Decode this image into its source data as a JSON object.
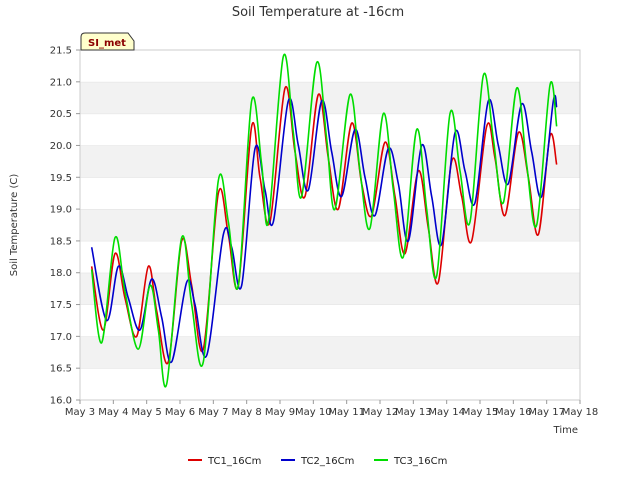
{
  "chart_data": {
    "type": "line",
    "title": "Soil Temperature at -16cm",
    "xlabel": "Time",
    "ylabel": "Soil Temperature (C)",
    "badge": "SI_met",
    "ylim": [
      16.0,
      21.5
    ],
    "xlim": [
      3,
      18
    ],
    "y_ticks": [
      "16.0",
      "16.5",
      "17.0",
      "17.5",
      "18.0",
      "18.5",
      "19.0",
      "19.5",
      "20.0",
      "20.5",
      "21.0",
      "21.5"
    ],
    "x_ticks": [
      "May 3",
      "May 4",
      "May 5",
      "May 6",
      "May 7",
      "May 8",
      "May 9",
      "May 10",
      "May 11",
      "May 12",
      "May 13",
      "May 14",
      "May 15",
      "May 16",
      "May 17",
      "May 18"
    ],
    "legend_position": "bottom-center",
    "grid": "alternating horizontal bands",
    "series": [
      {
        "name": "TC1_16Cm",
        "color": "#dd0000",
        "points": [
          [
            3.35,
            18.1
          ],
          [
            3.7,
            17.1
          ],
          [
            4.05,
            18.3
          ],
          [
            4.35,
            17.6
          ],
          [
            4.7,
            17.0
          ],
          [
            5.05,
            18.1
          ],
          [
            5.3,
            17.4
          ],
          [
            5.65,
            16.6
          ],
          [
            6.05,
            18.5
          ],
          [
            6.35,
            17.8
          ],
          [
            6.7,
            16.8
          ],
          [
            7.15,
            19.25
          ],
          [
            7.45,
            18.6
          ],
          [
            7.75,
            17.8
          ],
          [
            8.15,
            20.3
          ],
          [
            8.4,
            19.5
          ],
          [
            8.7,
            18.8
          ],
          [
            9.15,
            20.9
          ],
          [
            9.45,
            19.9
          ],
          [
            9.75,
            19.2
          ],
          [
            10.15,
            20.8
          ],
          [
            10.45,
            19.8
          ],
          [
            10.75,
            19.0
          ],
          [
            11.15,
            20.35
          ],
          [
            11.45,
            19.4
          ],
          [
            11.75,
            18.9
          ],
          [
            12.15,
            20.05
          ],
          [
            12.45,
            19.2
          ],
          [
            12.75,
            18.3
          ],
          [
            13.15,
            19.6
          ],
          [
            13.45,
            18.7
          ],
          [
            13.75,
            17.85
          ],
          [
            14.15,
            19.75
          ],
          [
            14.45,
            19.2
          ],
          [
            14.75,
            18.5
          ],
          [
            15.2,
            20.3
          ],
          [
            15.45,
            19.8
          ],
          [
            15.75,
            18.9
          ],
          [
            16.15,
            20.2
          ],
          [
            16.45,
            19.5
          ],
          [
            16.75,
            18.6
          ],
          [
            17.1,
            20.15
          ],
          [
            17.3,
            19.7
          ]
        ]
      },
      {
        "name": "TC2_16Cm",
        "color": "#0000cc",
        "points": [
          [
            3.35,
            18.4
          ],
          [
            3.8,
            17.25
          ],
          [
            4.15,
            18.1
          ],
          [
            4.45,
            17.6
          ],
          [
            4.8,
            17.1
          ],
          [
            5.15,
            17.9
          ],
          [
            5.45,
            17.3
          ],
          [
            5.75,
            16.6
          ],
          [
            6.2,
            17.85
          ],
          [
            6.45,
            17.5
          ],
          [
            6.8,
            16.7
          ],
          [
            7.3,
            18.6
          ],
          [
            7.55,
            18.4
          ],
          [
            7.85,
            17.8
          ],
          [
            8.25,
            19.95
          ],
          [
            8.55,
            19.3
          ],
          [
            8.8,
            18.8
          ],
          [
            9.25,
            20.7
          ],
          [
            9.55,
            20.0
          ],
          [
            9.85,
            19.3
          ],
          [
            10.25,
            20.7
          ],
          [
            10.55,
            19.9
          ],
          [
            10.85,
            19.2
          ],
          [
            11.25,
            20.25
          ],
          [
            11.55,
            19.5
          ],
          [
            11.85,
            18.9
          ],
          [
            12.25,
            19.95
          ],
          [
            12.55,
            19.4
          ],
          [
            12.85,
            18.5
          ],
          [
            13.25,
            20.0
          ],
          [
            13.55,
            19.2
          ],
          [
            13.85,
            18.45
          ],
          [
            14.25,
            20.2
          ],
          [
            14.55,
            19.6
          ],
          [
            14.85,
            19.1
          ],
          [
            15.25,
            20.7
          ],
          [
            15.55,
            20.0
          ],
          [
            15.85,
            19.4
          ],
          [
            16.25,
            20.65
          ],
          [
            16.55,
            19.9
          ],
          [
            16.85,
            19.2
          ],
          [
            17.2,
            20.7
          ],
          [
            17.3,
            20.6
          ]
        ]
      },
      {
        "name": "TC3_16Cm",
        "color": "#00dd00",
        "points": [
          [
            3.35,
            18.05
          ],
          [
            3.65,
            16.9
          ],
          [
            4.05,
            18.55
          ],
          [
            4.35,
            17.7
          ],
          [
            4.75,
            16.8
          ],
          [
            5.1,
            17.8
          ],
          [
            5.35,
            17.1
          ],
          [
            5.6,
            16.25
          ],
          [
            6.05,
            18.55
          ],
          [
            6.35,
            17.5
          ],
          [
            6.7,
            16.6
          ],
          [
            7.15,
            19.45
          ],
          [
            7.45,
            18.8
          ],
          [
            7.75,
            17.8
          ],
          [
            8.15,
            20.7
          ],
          [
            8.45,
            19.7
          ],
          [
            8.65,
            18.8
          ],
          [
            9.1,
            21.4
          ],
          [
            9.4,
            20.2
          ],
          [
            9.65,
            19.2
          ],
          [
            10.1,
            21.3
          ],
          [
            10.4,
            20.1
          ],
          [
            10.65,
            19.0
          ],
          [
            11.1,
            20.8
          ],
          [
            11.4,
            19.6
          ],
          [
            11.7,
            18.7
          ],
          [
            12.1,
            20.5
          ],
          [
            12.4,
            19.3
          ],
          [
            12.7,
            18.25
          ],
          [
            13.1,
            20.25
          ],
          [
            13.4,
            19.0
          ],
          [
            13.7,
            17.95
          ],
          [
            14.1,
            20.5
          ],
          [
            14.4,
            19.6
          ],
          [
            14.7,
            18.8
          ],
          [
            15.1,
            21.1
          ],
          [
            15.4,
            20.1
          ],
          [
            15.7,
            19.1
          ],
          [
            16.1,
            20.9
          ],
          [
            16.4,
            19.7
          ],
          [
            16.7,
            18.75
          ],
          [
            17.1,
            20.95
          ],
          [
            17.3,
            20.3
          ]
        ]
      }
    ]
  }
}
